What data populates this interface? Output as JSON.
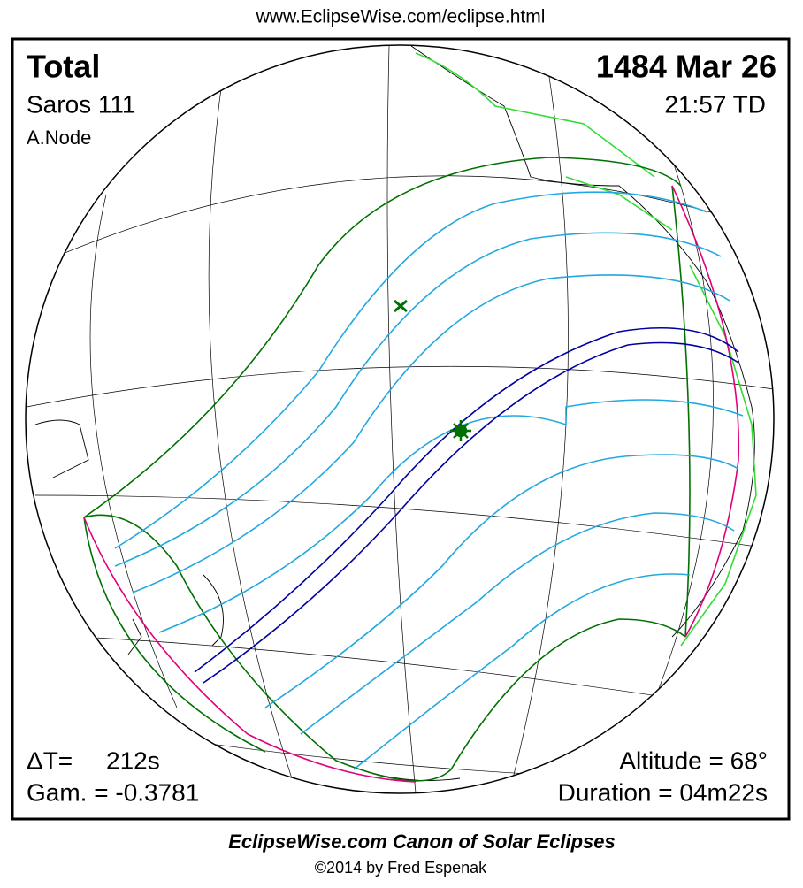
{
  "header": {
    "url": "www.EclipseWise.com/eclipse.html"
  },
  "eclipse": {
    "type": "Total",
    "date": "1484 Mar 26",
    "saros": "Saros 111",
    "time": "21:57 TD",
    "node": "A.Node",
    "delta_t_label": "ΔT=",
    "delta_t_value": "212s",
    "gamma": "Gam. = -0.3781",
    "altitude": "Altitude = 68°",
    "duration": "Duration = 04m22s"
  },
  "footer": {
    "title": "EclipseWise.com Canon of Solar Eclipses",
    "copyright": "©2014 by Fred Espenak"
  }
}
